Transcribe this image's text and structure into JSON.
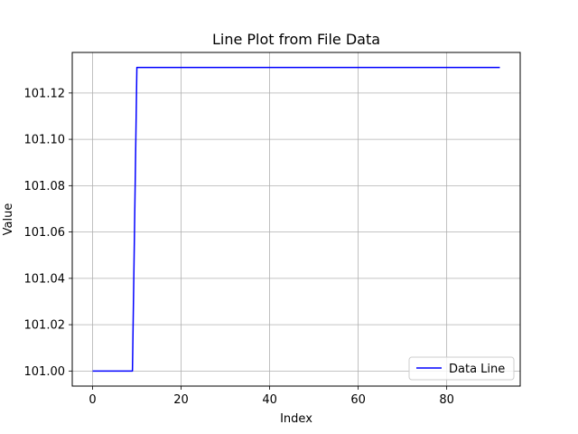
{
  "chart_data": {
    "type": "line",
    "title": "Line Plot from File Data",
    "xlabel": "Index",
    "ylabel": "Value",
    "xlim": [
      -4.6,
      96.6
    ],
    "ylim": [
      100.9935,
      101.1375
    ],
    "xticks": [
      0,
      20,
      40,
      60,
      80
    ],
    "xtick_labels": [
      "0",
      "20",
      "40",
      "60",
      "80"
    ],
    "yticks": [
      101.0,
      101.02,
      101.04,
      101.06,
      101.08,
      101.1,
      101.12
    ],
    "ytick_labels": [
      "101.00",
      "101.02",
      "101.04",
      "101.06",
      "101.08",
      "101.10",
      "101.12"
    ],
    "grid": true,
    "legend": "bottom-right",
    "series": [
      {
        "name": "Data Line",
        "color": "#0000ff",
        "x": [
          0,
          9,
          10,
          92
        ],
        "y": [
          101.0,
          101.0,
          101.131,
          101.131
        ]
      }
    ]
  }
}
